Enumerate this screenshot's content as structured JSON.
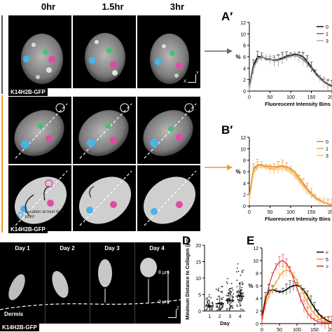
{
  "columns": [
    "0hr",
    "1.5hr",
    "3hr"
  ],
  "panel_labels": {
    "a_prime": "A′",
    "b_prime": "B′",
    "d": "D",
    "e": "E"
  },
  "tags": {
    "top": "K14H2B-GFP",
    "mid": "K14H2B-GFP",
    "bottom": "K14H2B-GFP"
  },
  "legend_note": "Location at next time point",
  "days": [
    "Day 1",
    "Day 2",
    "Day 3",
    "Day 4"
  ],
  "dermis_label": "Dermis",
  "scale": {
    "top": "8 μm",
    "bottom": "0 μm"
  },
  "axes_glyphs": {
    "x": "X",
    "y": "Y",
    "z": "Z"
  },
  "colors": {
    "black_series": "#111111",
    "gray_series": "#888888",
    "orange": "#f29a1f",
    "red": "#e8262a"
  },
  "chart_data": [
    {
      "id": "A-prime",
      "type": "line",
      "xlabel": "Fluorescent Intensity Bins",
      "ylabel": "%",
      "xlim": [
        0,
        200
      ],
      "ylim": [
        0,
        12
      ],
      "xticks": [
        "0",
        "50",
        "100",
        "150",
        "200"
      ],
      "yticks": [
        "0",
        "2",
        "4",
        "6",
        "8",
        "10",
        "12"
      ],
      "legend": [
        "0",
        "1",
        "3"
      ],
      "x": [
        0,
        10,
        20,
        30,
        40,
        50,
        60,
        70,
        80,
        90,
        100,
        110,
        120,
        130,
        140,
        150,
        160,
        170,
        180,
        190,
        200
      ],
      "series": [
        {
          "values": [
            0.5,
            4.5,
            6.0,
            6.0,
            5.6,
            5.5,
            5.4,
            5.5,
            5.8,
            6.1,
            6.3,
            6.4,
            6.3,
            6.0,
            5.2,
            4.2,
            3.2,
            2.4,
            1.7,
            1.2,
            0.9
          ],
          "color": "#111111"
        },
        {
          "values": [
            0.4,
            4.0,
            5.6,
            5.9,
            5.7,
            5.6,
            5.3,
            5.3,
            5.6,
            5.9,
            6.2,
            6.1,
            6.0,
            5.6,
            4.9,
            4.0,
            3.0,
            2.3,
            1.6,
            1.1,
            0.8
          ],
          "color": "#666666"
        },
        {
          "values": [
            0.4,
            3.8,
            5.5,
            5.8,
            5.8,
            5.5,
            5.2,
            5.4,
            5.5,
            5.8,
            6.0,
            6.2,
            5.9,
            5.4,
            4.7,
            3.8,
            2.9,
            2.1,
            1.5,
            1.0,
            0.7
          ],
          "color": "#aaaaaa"
        }
      ]
    },
    {
      "id": "B-prime",
      "type": "line",
      "xlabel": "Fluorescent Intensity Bins",
      "ylabel": "%",
      "xlim": [
        0,
        200
      ],
      "ylim": [
        0,
        12
      ],
      "xticks": [
        "0",
        "50",
        "100",
        "150",
        "200"
      ],
      "yticks": [
        "0",
        "2",
        "4",
        "6",
        "8",
        "10",
        "12"
      ],
      "legend": [
        "0",
        "1",
        "3"
      ],
      "x": [
        0,
        10,
        20,
        30,
        40,
        50,
        60,
        70,
        80,
        90,
        100,
        110,
        120,
        130,
        140,
        150,
        160,
        170,
        180,
        190,
        200
      ],
      "series": [
        {
          "values": [
            1.5,
            6.5,
            7.2,
            7.1,
            7.0,
            6.9,
            6.8,
            6.9,
            7.0,
            6.8,
            6.5,
            5.9,
            5.0,
            4.0,
            3.0,
            2.2,
            1.5,
            1.0,
            0.6,
            0.4,
            0.2
          ],
          "color": "#e8881a"
        },
        {
          "values": [
            1.2,
            6.0,
            7.0,
            7.0,
            6.8,
            6.6,
            6.5,
            6.7,
            6.8,
            6.5,
            6.1,
            5.5,
            4.6,
            3.7,
            2.8,
            2.0,
            1.4,
            0.9,
            0.5,
            0.3,
            0.2
          ],
          "color": "#f4a640"
        },
        {
          "values": [
            1.0,
            5.6,
            6.7,
            6.8,
            6.6,
            6.4,
            6.3,
            6.4,
            6.5,
            6.2,
            5.8,
            5.2,
            4.3,
            3.4,
            2.6,
            1.8,
            1.2,
            0.8,
            0.5,
            0.3,
            0.1
          ],
          "color": "#f7c27a"
        }
      ]
    },
    {
      "id": "D",
      "type": "scatter",
      "xlabel": "Day",
      "ylabel": "Minimum Distance to Collagen (μm)",
      "ylim": [
        0,
        20
      ],
      "yticks": [
        "0",
        "5",
        "10",
        "15",
        "20"
      ],
      "categories": [
        "1",
        "2",
        "3",
        "4"
      ],
      "means": [
        1.5,
        2.2,
        3.2,
        4.5
      ],
      "sd": [
        1.8,
        2.5,
        3.2,
        4.0
      ],
      "points_per_group": [
        1,
        2,
        3,
        4
      ]
    },
    {
      "id": "E",
      "type": "line",
      "ylabel": "%",
      "xlim": [
        0,
        200
      ],
      "ylim": [
        0,
        12
      ],
      "xticks": [
        "0",
        "50",
        "100",
        "150",
        "200"
      ],
      "yticks": [
        "0",
        "2",
        "4",
        "6",
        "8",
        "10",
        "12"
      ],
      "legend": [
        "<",
        "5",
        ">"
      ],
      "x": [
        0,
        10,
        20,
        30,
        40,
        50,
        60,
        70,
        80,
        90,
        100,
        110,
        120,
        130,
        140,
        150,
        160,
        170,
        180,
        190,
        200
      ],
      "series": [
        {
          "values": [
            0.8,
            4.0,
            5.2,
            5.4,
            5.2,
            5.0,
            5.1,
            5.4,
            5.8,
            6.0,
            6.1,
            5.8,
            5.2,
            4.4,
            3.4,
            2.5,
            1.7,
            1.1,
            0.7,
            0.4,
            0.2
          ],
          "color": "#111111"
        },
        {
          "values": [
            0.6,
            3.0,
            4.5,
            5.5,
            6.5,
            7.5,
            8.2,
            8.5,
            8.3,
            7.7,
            6.8,
            5.7,
            4.5,
            3.3,
            2.3,
            1.5,
            0.9,
            0.5,
            0.3,
            0.2,
            0.1
          ],
          "color": "#f29a1f"
        },
        {
          "values": [
            0.5,
            3.5,
            6.0,
            7.8,
            9.0,
            9.8,
            10.0,
            9.5,
            8.6,
            7.2,
            5.6,
            4.0,
            2.7,
            1.7,
            1.0,
            0.6,
            0.3,
            0.2,
            0.1,
            0.1,
            0.0
          ],
          "color": "#e8262a"
        }
      ]
    }
  ]
}
